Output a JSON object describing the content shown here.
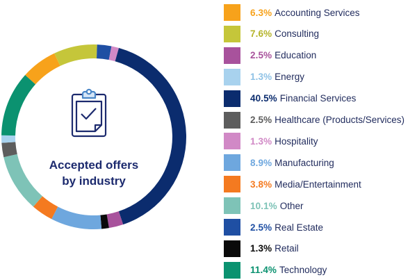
{
  "chart_data": {
    "type": "pie",
    "style": "donut",
    "center_title": [
      "Accepted offers",
      "by industry"
    ],
    "center_icon": "clipboard-check-icon",
    "legend_position": "right",
    "slices": [
      {
        "label": "Accounting Services",
        "pct_text": "6.3%",
        "value": 6.3,
        "color": "#f7a21b"
      },
      {
        "label": "Consulting",
        "pct_text": "7.6%",
        "value": 7.6,
        "color": "#c5c63a"
      },
      {
        "label": "Education",
        "pct_text": "2.5%",
        "value": 2.5,
        "color": "#a8529c"
      },
      {
        "label": "Energy",
        "pct_text": "1.3%",
        "value": 1.3,
        "color": "#a8d2ee"
      },
      {
        "label": "Financial Services",
        "pct_text": "40.5%",
        "value": 40.5,
        "color": "#0b2c6e"
      },
      {
        "label": "Healthcare (Products/Services)",
        "pct_text": "2.5%",
        "value": 2.5,
        "color": "#5d5d5d"
      },
      {
        "label": "Hospitality",
        "pct_text": "1.3%",
        "value": 1.3,
        "color": "#d189c6"
      },
      {
        "label": "Manufacturing",
        "pct_text": "8.9%",
        "value": 8.9,
        "color": "#6ea7de"
      },
      {
        "label": "Media/Entertainment",
        "pct_text": "3.8%",
        "value": 3.8,
        "color": "#f47a20"
      },
      {
        "label": "Other",
        "pct_text": "10.1%",
        "value": 10.1,
        "color": "#7ec3b7"
      },
      {
        "label": "Real Estate",
        "pct_text": "2.5%",
        "value": 2.5,
        "color": "#1f4fa3"
      },
      {
        "label": "Retail",
        "pct_text": "1.3%",
        "value": 1.3,
        "color": "#0a0a0a"
      },
      {
        "label": "Technology",
        "pct_text": "11.4%",
        "value": 11.4,
        "color": "#0b9270"
      }
    ],
    "ring_order": [
      "Accounting Services",
      "Consulting",
      "Real Estate",
      "Hospitality",
      "Financial Services",
      "Education",
      "Retail",
      "Manufacturing",
      "Media/Entertainment",
      "Other",
      "Healthcare (Products/Services)",
      "Energy",
      "Technology"
    ]
  }
}
